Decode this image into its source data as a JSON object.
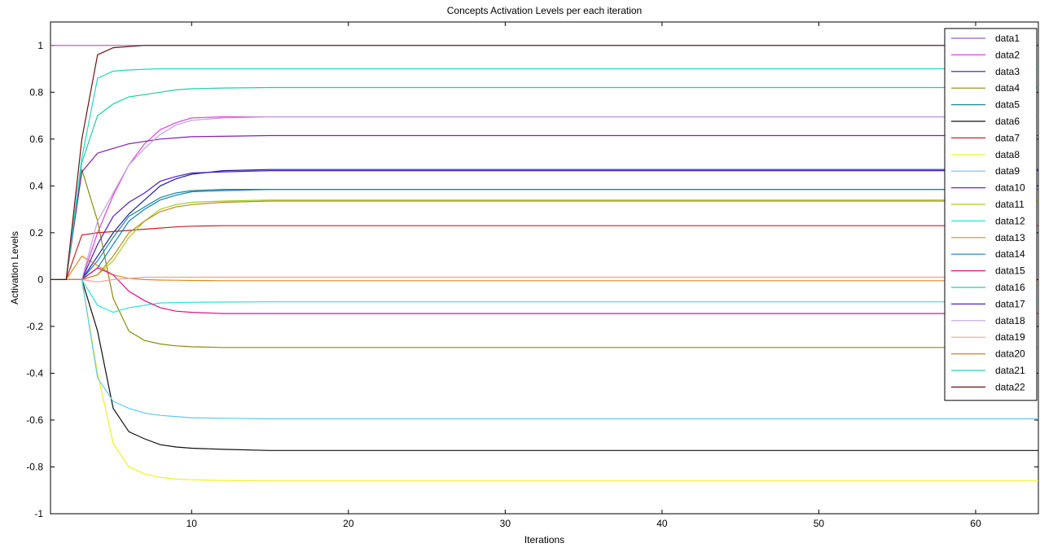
{
  "chart_data": {
    "type": "line",
    "title": "Concepts Activation Levels per  each iteration",
    "xlabel": "Iterations",
    "ylabel": "Activation Levels",
    "xlim": [
      1,
      64
    ],
    "ylim": [
      -1,
      1.1
    ],
    "xticks": [
      10,
      20,
      30,
      40,
      50,
      60
    ],
    "yticks": [
      -1,
      -0.8,
      -0.6,
      -0.4,
      -0.2,
      0,
      0.2,
      0.4,
      0.6,
      0.8,
      1
    ],
    "grid": false,
    "legend_position": "top-right",
    "x": [
      1,
      2,
      3,
      4,
      5,
      6,
      7,
      8,
      9,
      10,
      12,
      15,
      20,
      30,
      64
    ],
    "series": [
      {
        "name": "data1",
        "color": "#9b59d0",
        "values": [
          1,
          1,
          1,
          1,
          1,
          1,
          1,
          1,
          1,
          1,
          1,
          1,
          1,
          1,
          1
        ]
      },
      {
        "name": "data2",
        "color": "#e040e0",
        "values": [
          0,
          0,
          0,
          0.2,
          0.36,
          0.49,
          0.58,
          0.64,
          0.67,
          0.69,
          0.695,
          0.695,
          0.695,
          0.695,
          0.695
        ]
      },
      {
        "name": "data3",
        "color": "#2020a0",
        "values": [
          0,
          0,
          0,
          0.1,
          0.2,
          0.28,
          0.34,
          0.4,
          0.43,
          0.45,
          0.465,
          0.47,
          0.47,
          0.47,
          0.47
        ]
      },
      {
        "name": "data4",
        "color": "#8a8a10",
        "values": [
          0,
          0,
          0.47,
          0.25,
          -0.08,
          -0.22,
          -0.26,
          -0.275,
          -0.283,
          -0.287,
          -0.29,
          -0.29,
          -0.29,
          -0.29,
          -0.29
        ]
      },
      {
        "name": "data5",
        "color": "#1a8a9a",
        "values": [
          0,
          0,
          0,
          0.08,
          0.18,
          0.27,
          0.31,
          0.35,
          0.37,
          0.38,
          0.385,
          0.385,
          0.385,
          0.385,
          0.385
        ]
      },
      {
        "name": "data6",
        "color": "#101010",
        "values": [
          0,
          0,
          0,
          -0.22,
          -0.55,
          -0.65,
          -0.68,
          -0.705,
          -0.715,
          -0.72,
          -0.725,
          -0.73,
          -0.73,
          -0.73,
          -0.73
        ]
      },
      {
        "name": "data7",
        "color": "#cc2020",
        "values": [
          0,
          0,
          0.19,
          0.2,
          0.205,
          0.21,
          0.215,
          0.22,
          0.225,
          0.228,
          0.23,
          0.23,
          0.23,
          0.23,
          0.23
        ]
      },
      {
        "name": "data8",
        "color": "#f0f020",
        "values": [
          0,
          0,
          0,
          -0.4,
          -0.7,
          -0.8,
          -0.83,
          -0.845,
          -0.852,
          -0.855,
          -0.858,
          -0.86,
          -0.86,
          -0.86,
          -0.86
        ]
      },
      {
        "name": "data9",
        "color": "#60c8f0",
        "values": [
          0,
          0,
          0,
          -0.42,
          -0.52,
          -0.55,
          -0.57,
          -0.58,
          -0.585,
          -0.59,
          -0.592,
          -0.595,
          -0.595,
          -0.595,
          -0.595
        ]
      },
      {
        "name": "data10",
        "color": "#8020b0",
        "values": [
          0,
          0,
          0.46,
          0.54,
          0.56,
          0.58,
          0.59,
          0.6,
          0.605,
          0.61,
          0.612,
          0.615,
          0.615,
          0.615,
          0.615
        ]
      },
      {
        "name": "data11",
        "color": "#a0d020",
        "values": [
          0,
          0,
          0,
          0.02,
          0.08,
          0.18,
          0.25,
          0.3,
          0.32,
          0.33,
          0.335,
          0.34,
          0.34,
          0.34,
          0.34
        ]
      },
      {
        "name": "data12",
        "color": "#30e0e0",
        "values": [
          0,
          0,
          0,
          -0.11,
          -0.14,
          -0.12,
          -0.11,
          -0.1,
          -0.098,
          -0.097,
          -0.096,
          -0.095,
          -0.095,
          -0.095,
          -0.095
        ]
      },
      {
        "name": "data13",
        "color": "#e08820",
        "values": [
          0,
          0,
          0.1,
          0.06,
          0.02,
          0.005,
          0,
          -0.002,
          -0.003,
          -0.004,
          -0.005,
          -0.005,
          -0.005,
          -0.005,
          -0.005
        ]
      },
      {
        "name": "data14",
        "color": "#1080c0",
        "values": [
          0,
          0,
          0,
          0.05,
          0.15,
          0.25,
          0.3,
          0.34,
          0.36,
          0.375,
          0.38,
          0.385,
          0.385,
          0.385,
          0.385
        ]
      },
      {
        "name": "data15",
        "color": "#e01080",
        "values": [
          0,
          0,
          0,
          0.05,
          0.02,
          -0.05,
          -0.09,
          -0.12,
          -0.135,
          -0.14,
          -0.145,
          -0.145,
          -0.145,
          -0.145,
          -0.145
        ]
      },
      {
        "name": "data16",
        "color": "#20d0a0",
        "values": [
          0,
          0,
          0.5,
          0.7,
          0.75,
          0.78,
          0.79,
          0.8,
          0.81,
          0.815,
          0.818,
          0.82,
          0.82,
          0.82,
          0.82
        ]
      },
      {
        "name": "data17",
        "color": "#5020c0",
        "values": [
          0,
          0,
          0,
          0.15,
          0.27,
          0.33,
          0.37,
          0.42,
          0.44,
          0.455,
          0.46,
          0.465,
          0.465,
          0.465,
          0.465
        ]
      },
      {
        "name": "data18",
        "color": "#c0a0e0",
        "values": [
          0,
          0,
          0,
          0.25,
          0.37,
          0.49,
          0.56,
          0.62,
          0.66,
          0.68,
          0.69,
          0.695,
          0.695,
          0.695,
          0.695
        ]
      },
      {
        "name": "data19",
        "color": "#f0a0a0",
        "values": [
          0,
          0,
          0,
          -0.01,
          0,
          0.005,
          0.01,
          0.01,
          0.01,
          0.01,
          0.01,
          0.01,
          0.01,
          0.01,
          0.01
        ]
      },
      {
        "name": "data20",
        "color": "#c08a20",
        "values": [
          0,
          0,
          0,
          0.02,
          0.1,
          0.2,
          0.25,
          0.29,
          0.31,
          0.32,
          0.33,
          0.335,
          0.335,
          0.335,
          0.335
        ]
      },
      {
        "name": "data21",
        "color": "#20d8c0",
        "values": [
          0,
          0,
          0.52,
          0.86,
          0.89,
          0.895,
          0.898,
          0.9,
          0.9,
          0.9,
          0.9,
          0.9,
          0.9,
          0.9,
          0.9
        ]
      },
      {
        "name": "data22",
        "color": "#701010",
        "values": [
          0,
          0,
          0.6,
          0.96,
          0.99,
          0.995,
          1,
          1,
          1,
          1,
          1,
          1,
          1,
          1,
          1
        ]
      }
    ]
  }
}
